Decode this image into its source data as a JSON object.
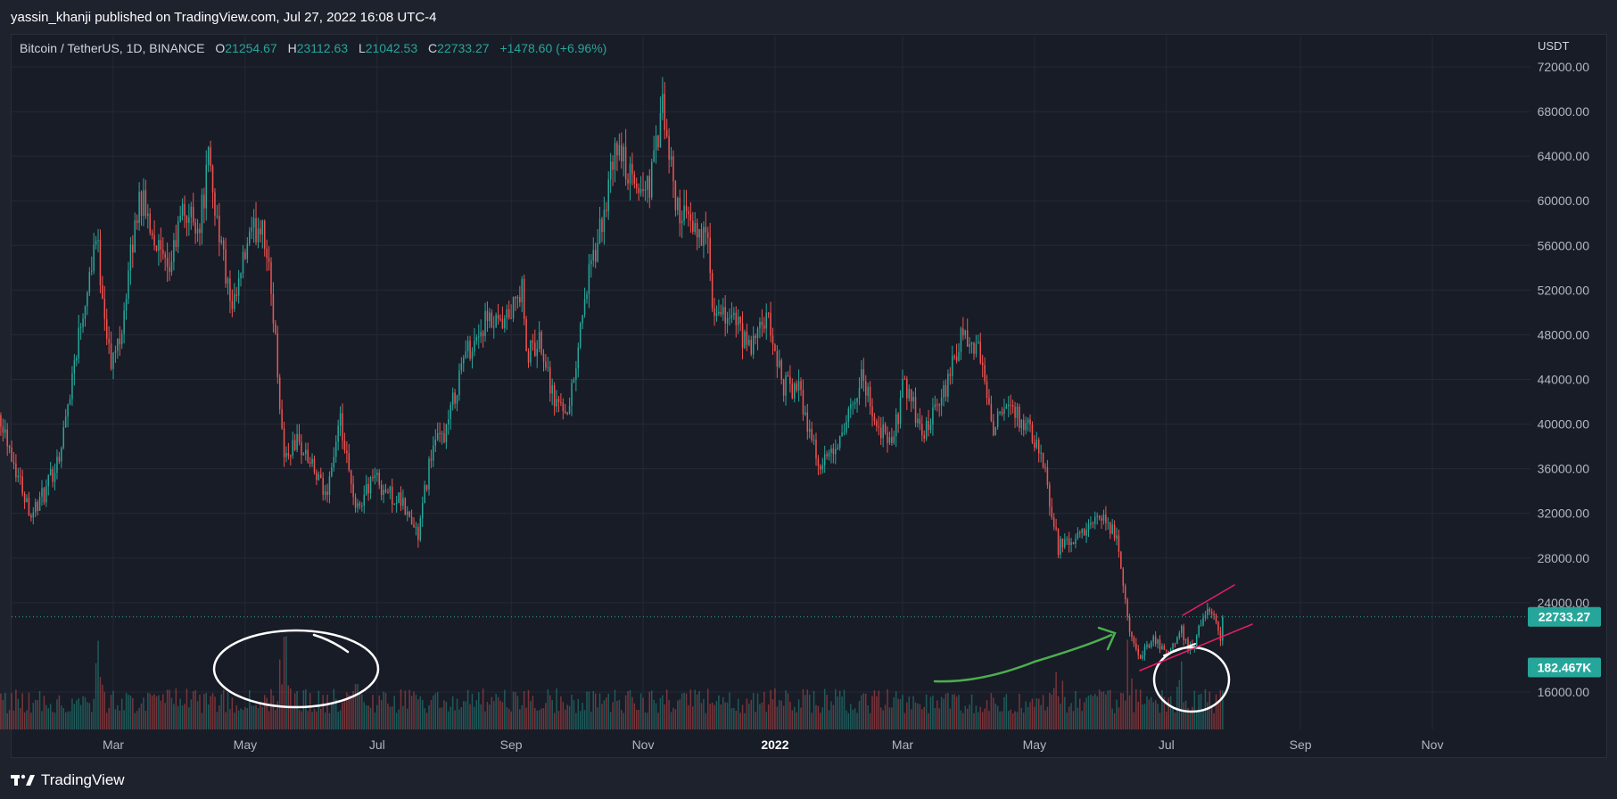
{
  "publisher": {
    "text": "yassin_khanji published on TradingView.com, Jul 27, 2022 16:08 UTC-4"
  },
  "legend": {
    "symbol": "Bitcoin / TetherUS, 1D, BINANCE",
    "open_label": "O",
    "open": "21254.67",
    "high_label": "H",
    "high": "23112.63",
    "low_label": "L",
    "low": "21042.53",
    "close_label": "C",
    "close": "22733.27",
    "change": "+1478.60 (+6.96%)"
  },
  "currency": "USDT",
  "price_badge": {
    "text": "22733.27",
    "color": "#26a69a"
  },
  "volume_badge": {
    "text": "182.467K",
    "color": "#26a69a"
  },
  "footer": {
    "brand": "TradingView"
  },
  "colors": {
    "up": "#26a69a",
    "down": "#ef5350",
    "background": "#181c27",
    "grid": "#242936"
  },
  "chart_data": {
    "type": "candlestick",
    "title": "Bitcoin / TetherUS, 1D, BINANCE",
    "ylabel": "USDT",
    "ylim": [
      12000,
      74000
    ],
    "y_ticks": [
      "72000.00",
      "68000.00",
      "64000.00",
      "60000.00",
      "56000.00",
      "52000.00",
      "48000.00",
      "44000.00",
      "40000.00",
      "36000.00",
      "32000.00",
      "28000.00",
      "24000.00",
      "16000.00"
    ],
    "x_ticks": [
      "Mar",
      "May",
      "Jul",
      "Sep",
      "Nov",
      "2022",
      "Mar",
      "May",
      "Jul",
      "Sep",
      "Nov"
    ],
    "x_tick_dates": [
      "2021-03-01",
      "2021-05-01",
      "2021-07-01",
      "2021-09-01",
      "2021-11-01",
      "2022-01-01",
      "2022-03-01",
      "2022-05-01",
      "2022-07-01",
      "2022-09-01",
      "2022-11-01"
    ],
    "date_range": [
      "2021-01-08",
      "2022-07-27"
    ],
    "last_price": 22733.27,
    "last_volume": "182.467K",
    "grid": true,
    "price_path": [
      [
        "2021-01-08",
        40800
      ],
      [
        "2021-01-15",
        36000
      ],
      [
        "2021-01-22",
        32000
      ],
      [
        "2021-01-29",
        34000
      ],
      [
        "2021-02-05",
        38000
      ],
      [
        "2021-02-12",
        47000
      ],
      [
        "2021-02-21",
        57000
      ],
      [
        "2021-02-28",
        45000
      ],
      [
        "2021-03-05",
        49000
      ],
      [
        "2021-03-13",
        60500
      ],
      [
        "2021-03-20",
        57000
      ],
      [
        "2021-03-26",
        53000
      ],
      [
        "2021-04-02",
        59000
      ],
      [
        "2021-04-10",
        58000
      ],
      [
        "2021-04-14",
        63500
      ],
      [
        "2021-04-20",
        56000
      ],
      [
        "2021-04-25",
        49500
      ],
      [
        "2021-05-02",
        56000
      ],
      [
        "2021-05-09",
        58500
      ],
      [
        "2021-05-14",
        50000
      ],
      [
        "2021-05-19",
        37000
      ],
      [
        "2021-05-25",
        38500
      ],
      [
        "2021-05-31",
        36500
      ],
      [
        "2021-06-07",
        33500
      ],
      [
        "2021-06-14",
        40000
      ],
      [
        "2021-06-21",
        32000
      ],
      [
        "2021-06-29",
        35500
      ],
      [
        "2021-07-05",
        34000
      ],
      [
        "2021-07-12",
        33000
      ],
      [
        "2021-07-20",
        30000
      ],
      [
        "2021-07-26",
        37500
      ],
      [
        "2021-08-02",
        39500
      ],
      [
        "2021-08-10",
        46000
      ],
      [
        "2021-08-20",
        49000
      ],
      [
        "2021-08-28",
        48500
      ],
      [
        "2021-09-06",
        52000
      ],
      [
        "2021-09-08",
        46000
      ],
      [
        "2021-09-15",
        47500
      ],
      [
        "2021-09-21",
        42000
      ],
      [
        "2021-09-28",
        41500
      ],
      [
        "2021-10-05",
        51500
      ],
      [
        "2021-10-12",
        57000
      ],
      [
        "2021-10-20",
        65000
      ],
      [
        "2021-10-28",
        61000
      ],
      [
        "2021-11-04",
        61500
      ],
      [
        "2021-11-10",
        68000
      ],
      [
        "2021-11-16",
        60000
      ],
      [
        "2021-11-24",
        57000
      ],
      [
        "2021-11-30",
        57500
      ],
      [
        "2021-12-04",
        49000
      ],
      [
        "2021-12-12",
        50000
      ],
      [
        "2021-12-20",
        46500
      ],
      [
        "2021-12-28",
        49500
      ],
      [
        "2022-01-05",
        43500
      ],
      [
        "2022-01-12",
        43000
      ],
      [
        "2022-01-22",
        36000
      ],
      [
        "2022-02-01",
        38500
      ],
      [
        "2022-02-10",
        44500
      ],
      [
        "2022-02-17",
        40000
      ],
      [
        "2022-02-24",
        38000
      ],
      [
        "2022-03-02",
        44000
      ],
      [
        "2022-03-10",
        39000
      ],
      [
        "2022-03-18",
        41500
      ],
      [
        "2022-03-28",
        47500
      ],
      [
        "2022-04-05",
        46500
      ],
      [
        "2022-04-12",
        40000
      ],
      [
        "2022-04-20",
        41500
      ],
      [
        "2022-04-28",
        39500
      ],
      [
        "2022-05-05",
        36500
      ],
      [
        "2022-05-12",
        29000
      ],
      [
        "2022-05-20",
        29500
      ],
      [
        "2022-05-31",
        31500
      ],
      [
        "2022-06-08",
        30000
      ],
      [
        "2022-06-13",
        22500
      ],
      [
        "2022-06-18",
        19000
      ],
      [
        "2022-06-25",
        21000
      ],
      [
        "2022-07-02",
        19300
      ],
      [
        "2022-07-08",
        21500
      ],
      [
        "2022-07-13",
        19500
      ],
      [
        "2022-07-19",
        23400
      ],
      [
        "2022-07-23",
        22500
      ],
      [
        "2022-07-26",
        21000
      ],
      [
        "2022-07-27",
        22733
      ]
    ],
    "volume_spikes": [
      [
        "2021-02-22",
        2.4
      ],
      [
        "2021-05-19",
        3.0
      ],
      [
        "2021-06-21",
        1.5
      ],
      [
        "2022-05-12",
        2.0
      ],
      [
        "2022-06-13",
        2.2
      ],
      [
        "2022-07-08",
        1.9
      ]
    ]
  }
}
